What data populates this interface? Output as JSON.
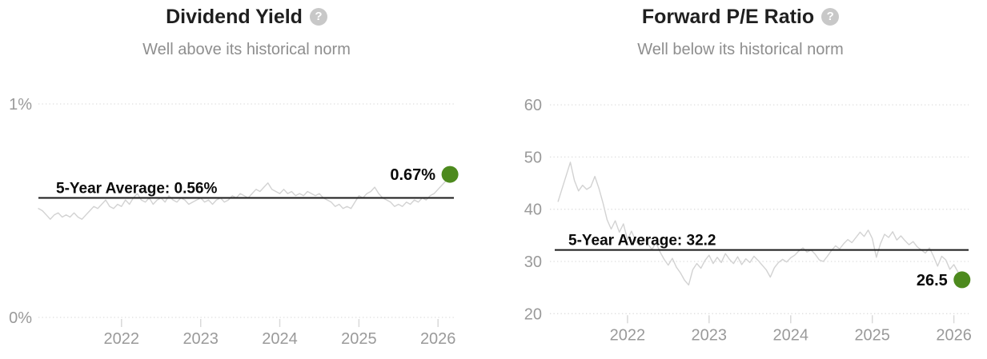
{
  "chart_data": [
    {
      "type": "line",
      "title": "Dividend Yield",
      "subtitle": "Well above its historical norm",
      "help_glyph": "?",
      "x_tick_labels": [
        "2022",
        "2023",
        "2024",
        "2025",
        "2026"
      ],
      "x_tick_values": [
        2022,
        2023,
        2024,
        2025,
        2026
      ],
      "xlim": [
        2020.95,
        2026.2
      ],
      "ylim": [
        0,
        1
      ],
      "y_ticks": [
        {
          "v": 1,
          "label": "1%"
        },
        {
          "v": 0,
          "label": "0%"
        }
      ],
      "grid": "dotted-horizontal",
      "legend": "none",
      "average_line": {
        "value": 0.56,
        "label": "5-Year Average: 0.56%"
      },
      "latest": {
        "value": 0.67,
        "label": "0.67%"
      },
      "series": [
        {
          "name": "Dividend Yield (%)",
          "x_start": 2020.95,
          "x_step": 0.05,
          "values": [
            0.51,
            0.5,
            0.48,
            0.46,
            0.48,
            0.49,
            0.47,
            0.48,
            0.47,
            0.49,
            0.47,
            0.46,
            0.48,
            0.5,
            0.52,
            0.51,
            0.53,
            0.55,
            0.52,
            0.51,
            0.53,
            0.52,
            0.55,
            0.53,
            0.56,
            0.58,
            0.55,
            0.54,
            0.56,
            0.53,
            0.55,
            0.56,
            0.54,
            0.57,
            0.55,
            0.54,
            0.56,
            0.55,
            0.53,
            0.54,
            0.55,
            0.56,
            0.54,
            0.55,
            0.53,
            0.55,
            0.56,
            0.54,
            0.55,
            0.57,
            0.56,
            0.58,
            0.57,
            0.56,
            0.58,
            0.6,
            0.59,
            0.61,
            0.63,
            0.6,
            0.59,
            0.58,
            0.6,
            0.58,
            0.59,
            0.57,
            0.58,
            0.57,
            0.59,
            0.58,
            0.57,
            0.58,
            0.56,
            0.55,
            0.54,
            0.52,
            0.53,
            0.51,
            0.52,
            0.51,
            0.54,
            0.57,
            0.56,
            0.58,
            0.59,
            0.61,
            0.58,
            0.56,
            0.55,
            0.54,
            0.52,
            0.53,
            0.52,
            0.54,
            0.53,
            0.55,
            0.54,
            0.56,
            0.55,
            0.57,
            0.58,
            0.6,
            0.62,
            0.64,
            0.67
          ]
        }
      ],
      "colors": {
        "series": "#d2d2d2",
        "average": "#1a1a1a",
        "latest_dot": "#4d8a1e",
        "axis_text": "#9a9a9a",
        "grid": "#dddddd",
        "tick": "#d9d9d9"
      }
    },
    {
      "type": "line",
      "title": "Forward P/E Ratio",
      "subtitle": "Well below its historical norm",
      "help_glyph": "?",
      "x_tick_labels": [
        "2022",
        "2023",
        "2024",
        "2025",
        "2026"
      ],
      "x_tick_values": [
        2022,
        2023,
        2024,
        2025,
        2026
      ],
      "xlim": [
        2021.05,
        2026.18
      ],
      "ylim": [
        20,
        60
      ],
      "y_ticks": [
        {
          "v": 60,
          "label": "60"
        },
        {
          "v": 50,
          "label": "50"
        },
        {
          "v": 40,
          "label": "40"
        },
        {
          "v": 30,
          "label": "30"
        },
        {
          "v": 20,
          "label": "20"
        }
      ],
      "grid": "dotted-horizontal",
      "legend": "none",
      "average_line": {
        "value": 32.2,
        "label": "5-Year Average: 32.2"
      },
      "latest": {
        "value": 26.5,
        "label": "26.5"
      },
      "series": [
        {
          "name": "Forward P/E Ratio",
          "x_start": 2021.15,
          "x_step": 0.05,
          "values": [
            41.5,
            44.0,
            46.5,
            49.0,
            45.5,
            43.5,
            44.6,
            43.8,
            44.3,
            46.3,
            44.0,
            41.2,
            38.0,
            36.2,
            37.8,
            35.6,
            37.2,
            34.2,
            35.8,
            34.0,
            33.0,
            34.5,
            33.4,
            32.3,
            33.6,
            31.8,
            30.4,
            29.3,
            30.6,
            28.9,
            27.8,
            26.4,
            25.5,
            28.4,
            29.6,
            28.7,
            30.2,
            31.2,
            29.6,
            30.8,
            29.8,
            31.5,
            30.4,
            29.6,
            30.9,
            29.4,
            30.5,
            29.8,
            31.0,
            30.2,
            29.3,
            28.4,
            27.0,
            28.8,
            29.8,
            30.4,
            29.9,
            30.7,
            31.2,
            32.0,
            32.6,
            31.8,
            32.2,
            31.4,
            30.3,
            30.0,
            31.0,
            32.1,
            33.0,
            32.4,
            33.4,
            34.2,
            33.6,
            34.6,
            35.6,
            34.8,
            36.0,
            34.4,
            30.8,
            33.4,
            35.2,
            34.6,
            35.7,
            34.1,
            34.9,
            34.0,
            33.2,
            33.8,
            32.8,
            32.2,
            31.6,
            32.6,
            31.0,
            29.1,
            31.0,
            30.3,
            28.5,
            29.4,
            28.0,
            26.5
          ]
        }
      ],
      "colors": {
        "series": "#d2d2d2",
        "average": "#1a1a1a",
        "latest_dot": "#4d8a1e",
        "axis_text": "#9a9a9a",
        "grid": "#dddddd",
        "tick": "#d9d9d9"
      }
    }
  ]
}
